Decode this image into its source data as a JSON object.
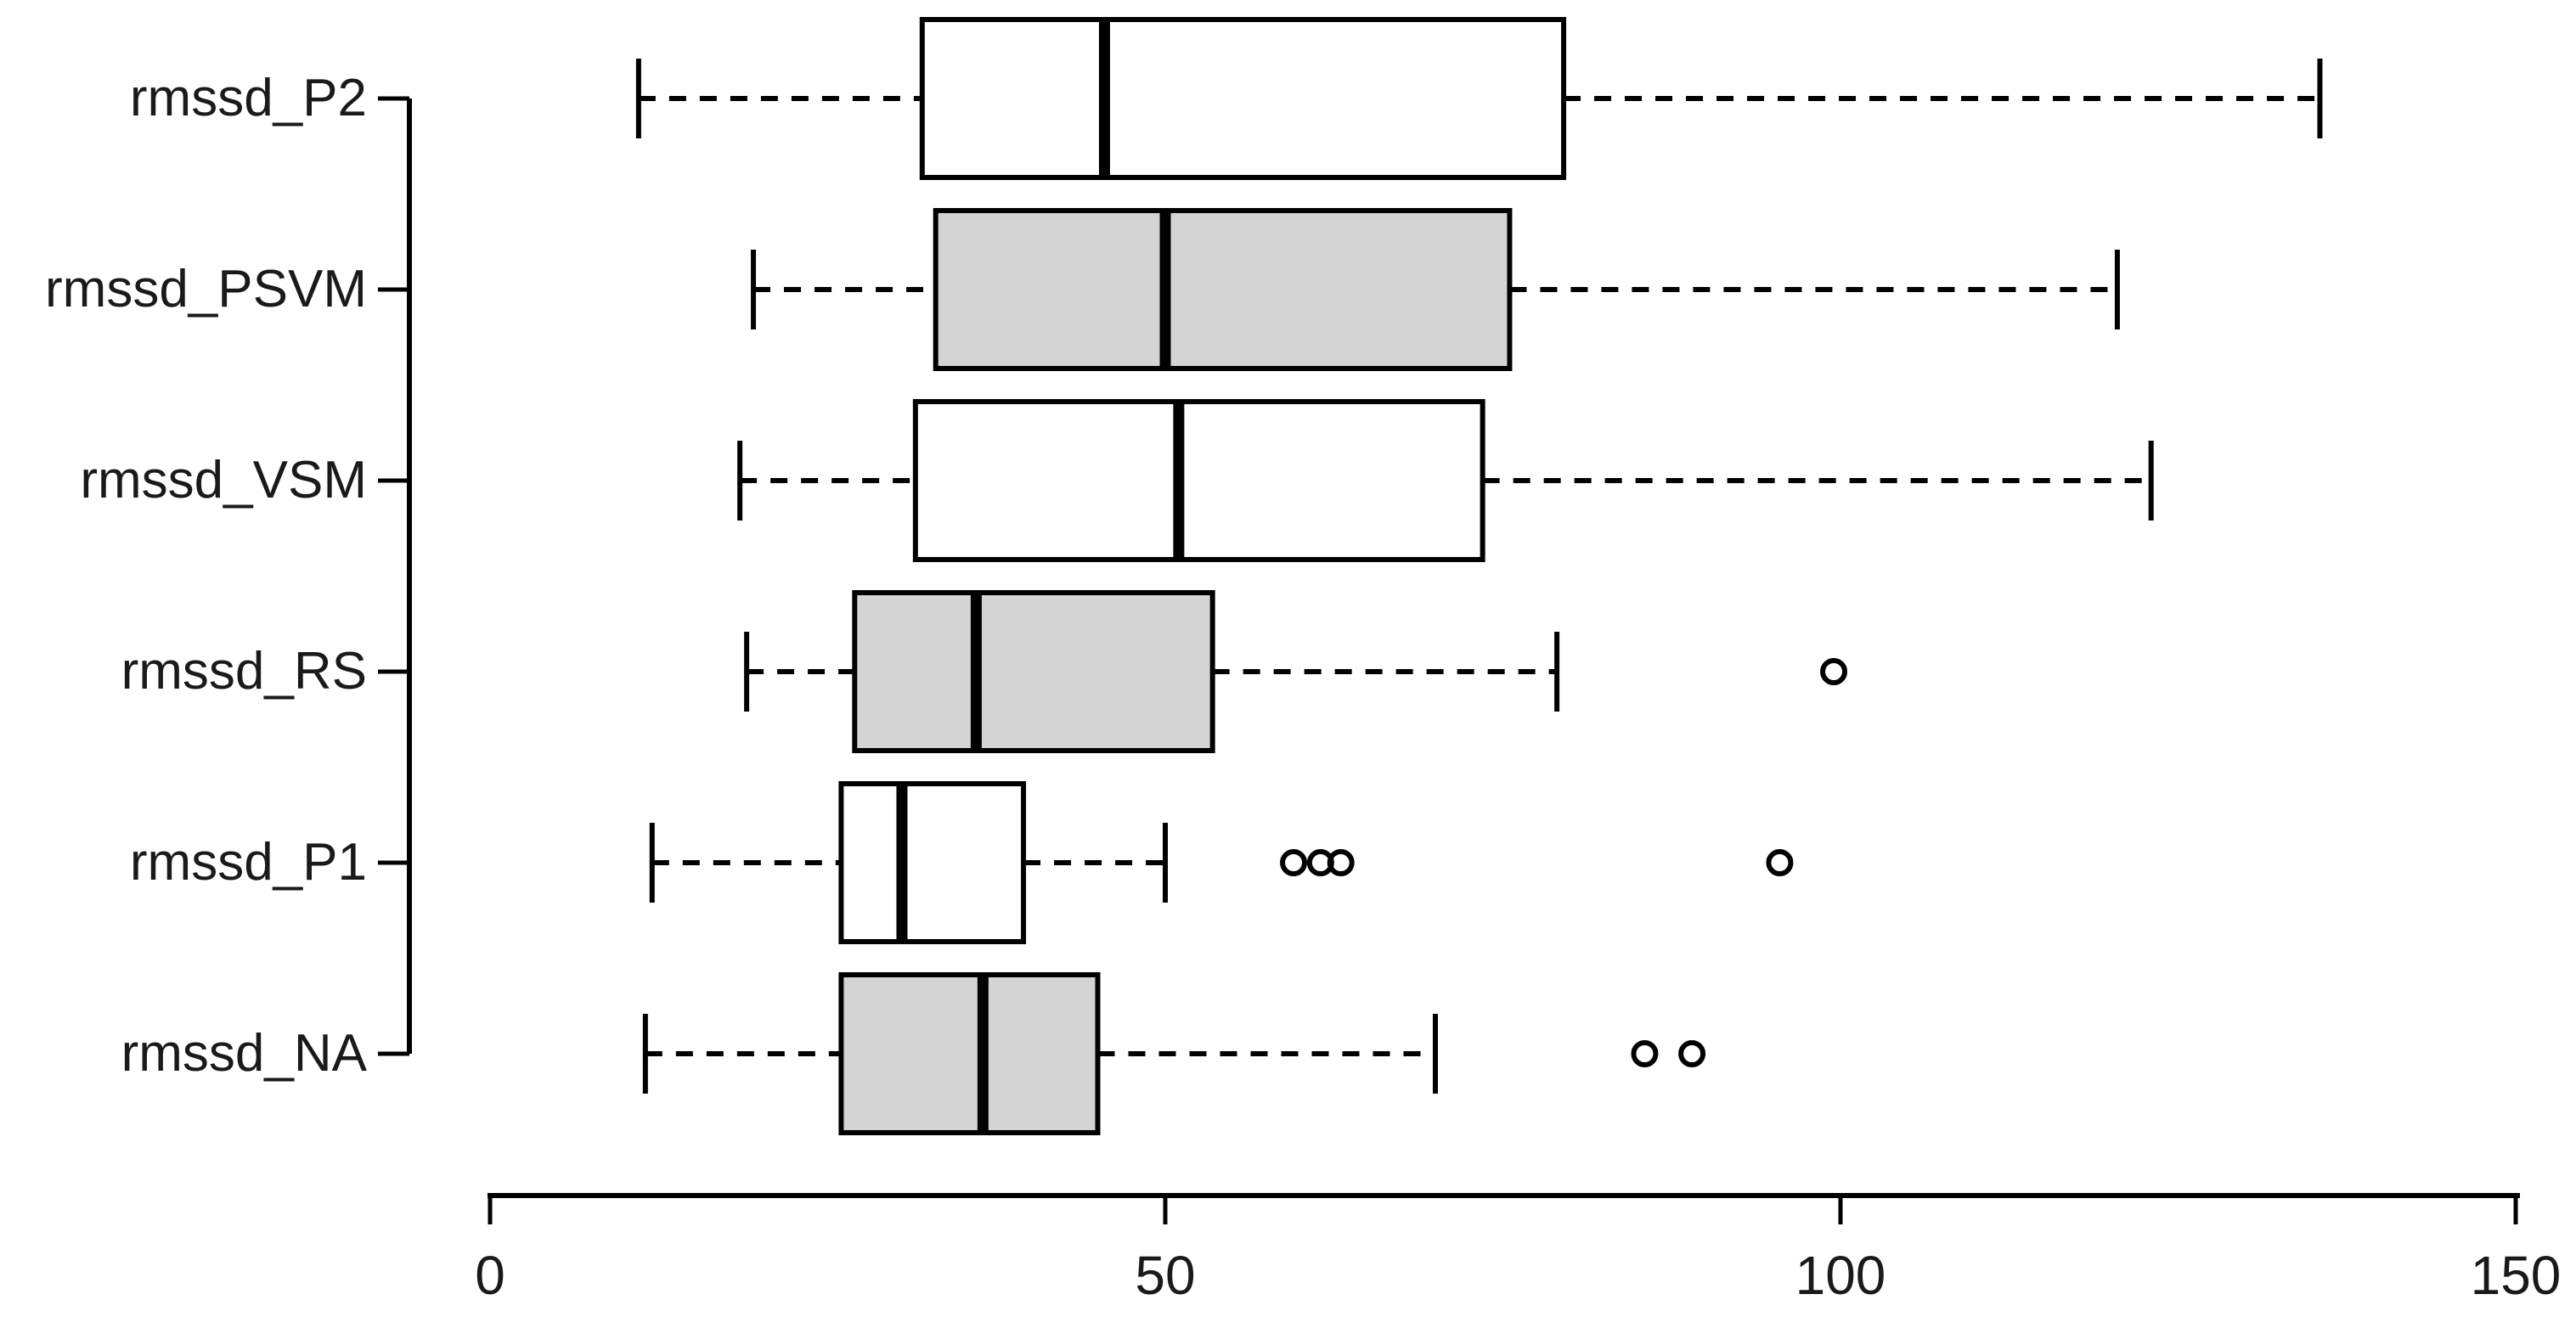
{
  "chart_data": {
    "type": "boxplot",
    "orientation": "horizontal",
    "title": "",
    "xlabel": "",
    "ylabel": "",
    "xlim": [
      0,
      150
    ],
    "x_ticks": [
      0,
      50,
      100,
      150
    ],
    "x_tick_labels": [
      "0",
      "50",
      "100",
      "150"
    ],
    "grid": false,
    "legend": "none",
    "stroke_color": "#000000",
    "background_color": "#ffffff",
    "box_fill_white": "#ffffff",
    "box_fill_gray": "#d4d4d4",
    "series": [
      {
        "label": "rmssd_P2",
        "fill": "#ffffff",
        "whisker_low": 11,
        "q1": 32,
        "median": 45.5,
        "q3": 79.5,
        "whisker_high": 135.5,
        "outliers": []
      },
      {
        "label": "rmssd_PSVM",
        "fill": "#d4d4d4",
        "whisker_low": 19.5,
        "q1": 33,
        "median": 50,
        "q3": 75.5,
        "whisker_high": 120.5,
        "outliers": []
      },
      {
        "label": "rmssd_VSM",
        "fill": "#ffffff",
        "whisker_low": 18.5,
        "q1": 31.5,
        "median": 51,
        "q3": 73.5,
        "whisker_high": 123,
        "outliers": []
      },
      {
        "label": "rmssd_RS",
        "fill": "#d4d4d4",
        "whisker_low": 19,
        "q1": 27,
        "median": 36,
        "q3": 53.5,
        "whisker_high": 79,
        "outliers": [
          99.5
        ]
      },
      {
        "label": "rmssd_P1",
        "fill": "#ffffff",
        "whisker_low": 12,
        "q1": 26,
        "median": 30.5,
        "q3": 39.5,
        "whisker_high": 50,
        "outliers": [
          59.5,
          61.5,
          63,
          95.5
        ]
      },
      {
        "label": "rmssd_NA",
        "fill": "#d4d4d4",
        "whisker_low": 11.5,
        "q1": 26,
        "median": 36.5,
        "q3": 45,
        "whisker_high": 70,
        "outliers": [
          85.5,
          89
        ]
      }
    ]
  }
}
